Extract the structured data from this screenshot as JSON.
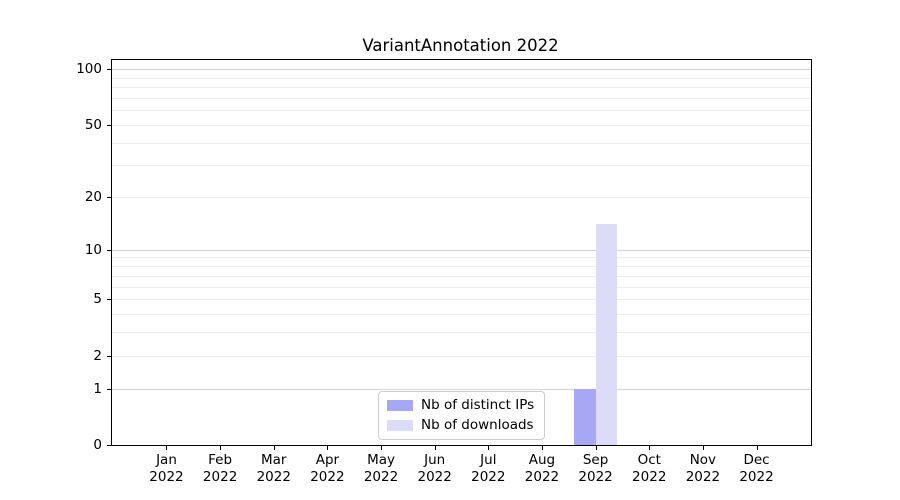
{
  "title": "VariantAnnotation 2022",
  "chart_data": {
    "type": "bar",
    "title": "VariantAnnotation 2022",
    "categories": [
      "Jan",
      "Feb",
      "Mar",
      "Apr",
      "May",
      "Jun",
      "Jul",
      "Aug",
      "Sep",
      "Oct",
      "Nov",
      "Dec"
    ],
    "category_year": "2022",
    "series": [
      {
        "name": "Nb of distinct IPs",
        "color": "#a7a7f5",
        "values": [
          0,
          0,
          0,
          0,
          0,
          0,
          0,
          0,
          1,
          0,
          0,
          0
        ]
      },
      {
        "name": "Nb of downloads",
        "color": "#dcdcf8",
        "values": [
          0,
          0,
          0,
          0,
          0,
          0,
          0,
          0,
          14,
          0,
          0,
          0
        ]
      }
    ],
    "yscale": "log1p",
    "ylim": [
      0,
      112
    ],
    "ytick_labels": [
      0,
      1,
      2,
      5,
      10,
      20,
      50,
      100
    ],
    "major_grid_values": [
      1,
      10,
      100
    ],
    "minor_grid_values": [
      2,
      3,
      4,
      5,
      6,
      7,
      8,
      9,
      20,
      30,
      40,
      50,
      60,
      70,
      80,
      90
    ],
    "xlabel": "",
    "ylabel": "",
    "grid": true,
    "legend_position": "lower center",
    "legend_entries": [
      "Nb of distinct IPs",
      "Nb of downloads"
    ]
  }
}
